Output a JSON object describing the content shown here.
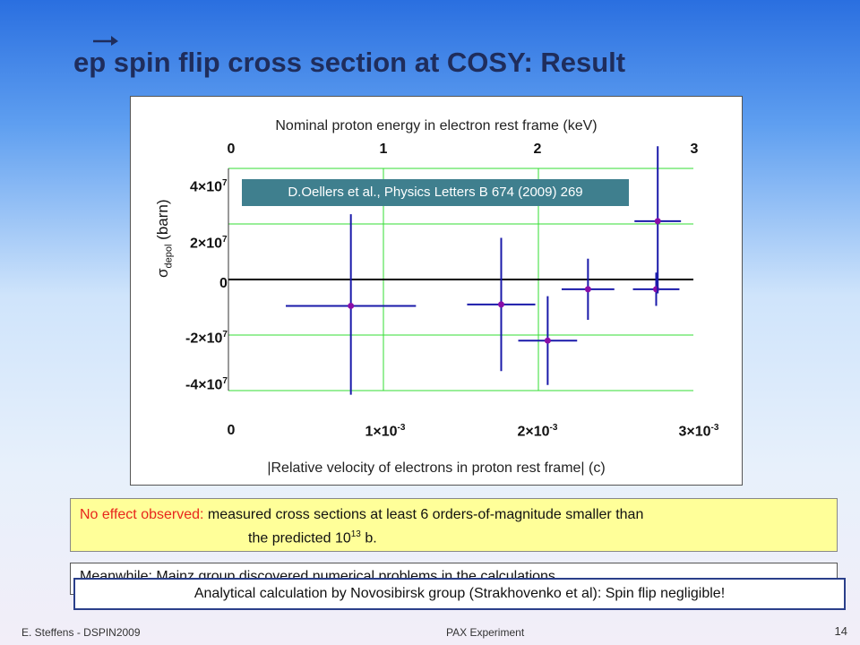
{
  "slide": {
    "title_ep": "ep",
    "title_rest": " spin flip cross section at COSY: Result",
    "footer_left": "E. Steffens  -  DSPIN2009",
    "footer_center": "PAX Experiment",
    "page_number": "14"
  },
  "chart_data": {
    "type": "scatter",
    "top_axis_label": "Nominal proton energy in electron rest frame (keV)",
    "top_ticks": [
      "0",
      "1",
      "2",
      "3"
    ],
    "bottom_axis_label": "|Relative velocity of electrons in proton rest frame| (c)",
    "bottom_ticks": [
      {
        "m": "0",
        "e": ""
      },
      {
        "m": "1×10",
        "e": "-3"
      },
      {
        "m": "2×10",
        "e": "-3"
      },
      {
        "m": "3×10",
        "e": "-3"
      }
    ],
    "y_ticks": [
      {
        "m": "4×10",
        "e": "7"
      },
      {
        "m": "2×10",
        "e": "7"
      },
      {
        "m": "0",
        "e": ""
      },
      {
        "m": "-2×10",
        "e": "7"
      },
      {
        "m": "-4×10",
        "e": "7"
      }
    ],
    "ylabel_sigma": "σ",
    "ylabel_sub": "depol",
    "ylabel_unit": "(barn)",
    "xlim": [
      0,
      0.003
    ],
    "ylim": [
      -40000000,
      40000000
    ],
    "grid": true,
    "annotation": "D.Oellers et al., Physics Letters B 674 (2009) 269",
    "points": [
      {
        "x": 0.00079,
        "y": -9500000,
        "xerr": 0.00042,
        "yerr_low": 32000000,
        "yerr_high": 33000000
      },
      {
        "x": 0.00176,
        "y": -9000000,
        "xerr": 0.00022,
        "yerr_low": 24000000,
        "yerr_high": 24000000
      },
      {
        "x": 0.00206,
        "y": -22000000,
        "xerr": 0.00019,
        "yerr_low": 16000000,
        "yerr_high": 16000000
      },
      {
        "x": 0.00232,
        "y": -3500000,
        "xerr": 0.00017,
        "yerr_low": 11000000,
        "yerr_high": 11000000
      },
      {
        "x": 0.00276,
        "y": -3500000,
        "xerr": 0.00015,
        "yerr_low": 6000000,
        "yerr_high": 6000000
      },
      {
        "x": 0.00277,
        "y": 21000000,
        "xerr": 0.00015,
        "yerr_low": 26000000,
        "yerr_high": 27000000
      }
    ],
    "colors": {
      "grid": "#33dd33",
      "error_bar": "#1a1aaa",
      "marker": "#8a0ea8",
      "zero_line": "#000000"
    }
  },
  "notes": {
    "effect_label": "No effect observed:",
    "effect_text": " measured cross sections at least 6 orders-of-magnitude smaller than",
    "effect_line2": "the predicted 10",
    "effect_line2_exp": "13",
    "effect_line2_tail": " b.",
    "hidden_text": "Meanwhile: Mainz group discovered numerical problems in the calculations ...",
    "analytical": "Analytical calculation by Novosibirsk group (Strakhovenko et al): Spin flip negligible!"
  }
}
